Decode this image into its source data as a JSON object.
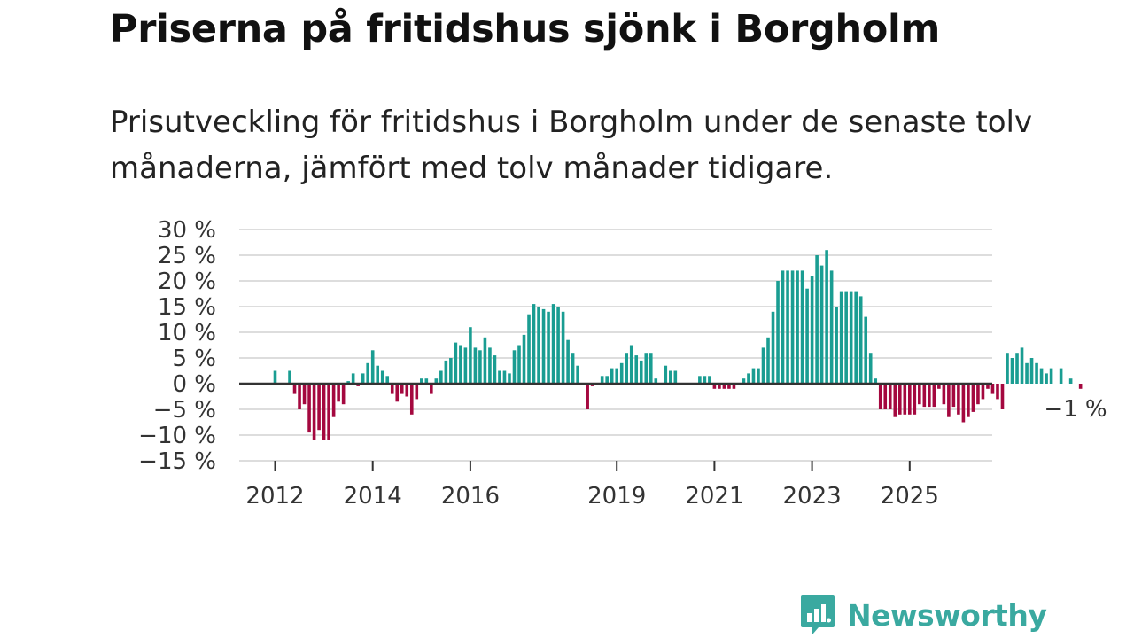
{
  "title": "Priserna på fritidshus sjönk i Borgholm",
  "subtitle": "Prisutveckling för fritidshus i Borgholm under de senaste tolv månaderna, jämfört med tolv månader tidigare.",
  "logo": {
    "text": "Newsworthy",
    "icon": "bar-chart-bubble-icon"
  },
  "colors": {
    "positive": "#1a9d92",
    "negative": "#a4083f",
    "grid": "#dddddd",
    "zero": "#333333",
    "brand": "#3aa9a0"
  },
  "chart_data": {
    "type": "bar",
    "title": "Priserna på fritidshus sjönk i Borgholm",
    "xlabel": "",
    "ylabel": "",
    "unit": "%",
    "ylim": [
      -15,
      30
    ],
    "yticks": [
      30,
      25,
      20,
      15,
      10,
      5,
      0,
      -5,
      -10,
      -15
    ],
    "ytick_labels": [
      "30 %",
      "25 %",
      "20 %",
      "15 %",
      "10 %",
      "5 %",
      "0 %",
      "−5 %",
      "−10 %",
      "−15 %"
    ],
    "xticks": [
      {
        "label": "2012",
        "index": 0
      },
      {
        "label": "2014",
        "index": 20
      },
      {
        "label": "2016",
        "index": 40
      },
      {
        "label": "2019",
        "index": 70
      },
      {
        "label": "2021",
        "index": 90
      },
      {
        "label": "2023",
        "index": 110
      },
      {
        "label": "2025",
        "index": 130
      }
    ],
    "last_value_label": "−1 %",
    "values": [
      2.5,
      0,
      0,
      2.5,
      -2,
      -5,
      -4,
      -9.5,
      -11,
      -9,
      -11,
      -11,
      -6.5,
      -3.5,
      -4,
      0.5,
      2,
      -0.5,
      2,
      4,
      6.5,
      3.5,
      2.5,
      1.5,
      -2,
      -3.5,
      -2,
      -2.5,
      -6,
      -3,
      1,
      1,
      -2,
      1,
      2.5,
      4.5,
      5,
      8,
      7.5,
      7,
      11,
      7,
      6.5,
      9,
      7,
      5.5,
      2.5,
      2.5,
      2,
      6.5,
      7.5,
      9.5,
      13.5,
      15.5,
      15,
      14.5,
      14,
      15.5,
      15,
      14,
      8.5,
      6,
      3.5,
      0,
      -5,
      -0.5,
      0,
      1.5,
      1.5,
      3,
      3,
      4,
      6,
      7.5,
      5.5,
      4.5,
      6,
      6,
      1,
      0,
      3.5,
      2.5,
      2.5,
      0,
      0,
      0,
      0,
      1.5,
      1.5,
      1.5,
      -1,
      -1,
      -1,
      -1,
      -1,
      0,
      1,
      2,
      3,
      3,
      7,
      9,
      14,
      20,
      22,
      22,
      22,
      22,
      22,
      18.5,
      21,
      25,
      23,
      26,
      22,
      15,
      18,
      18,
      18,
      18,
      17,
      13,
      6,
      1,
      -5,
      -5,
      -5,
      -6.5,
      -6,
      -6,
      -6,
      -6,
      -4,
      -4.5,
      -4.5,
      -4.5,
      -1,
      -4,
      -6.5,
      -4.5,
      -6,
      -7.5,
      -6.5,
      -5.5,
      -4,
      -3,
      -1,
      -2,
      -3,
      -5,
      6,
      5,
      6,
      7,
      4,
      5,
      4,
      3,
      2,
      3,
      0,
      3,
      0,
      1,
      0,
      -1
    ]
  }
}
